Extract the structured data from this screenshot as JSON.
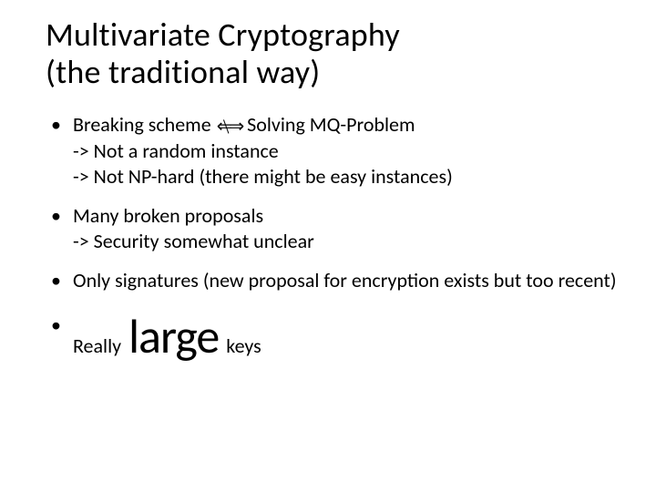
{
  "title_line1": "Multivariate Cryptography",
  "title_line2": "(the traditional way)",
  "bullets": {
    "b1": {
      "pre": "Breaking scheme ",
      "post": " Solving MQ-Problem",
      "sub1": "-> Not a random instance",
      "sub2": "-> Not NP-hard (there might be easy instances)"
    },
    "b2": {
      "main": "Many broken proposals",
      "sub1": "-> Security somewhat unclear"
    },
    "b3": {
      "main": "Only signatures (new proposal for encryption exists but too recent)"
    },
    "b4": {
      "pre": "Really ",
      "big": "large",
      "post": " keys"
    }
  },
  "colors": {
    "text": "#000000",
    "background": "#ffffff"
  },
  "fontsizes": {
    "title": 36,
    "body": 22,
    "big": 52
  }
}
